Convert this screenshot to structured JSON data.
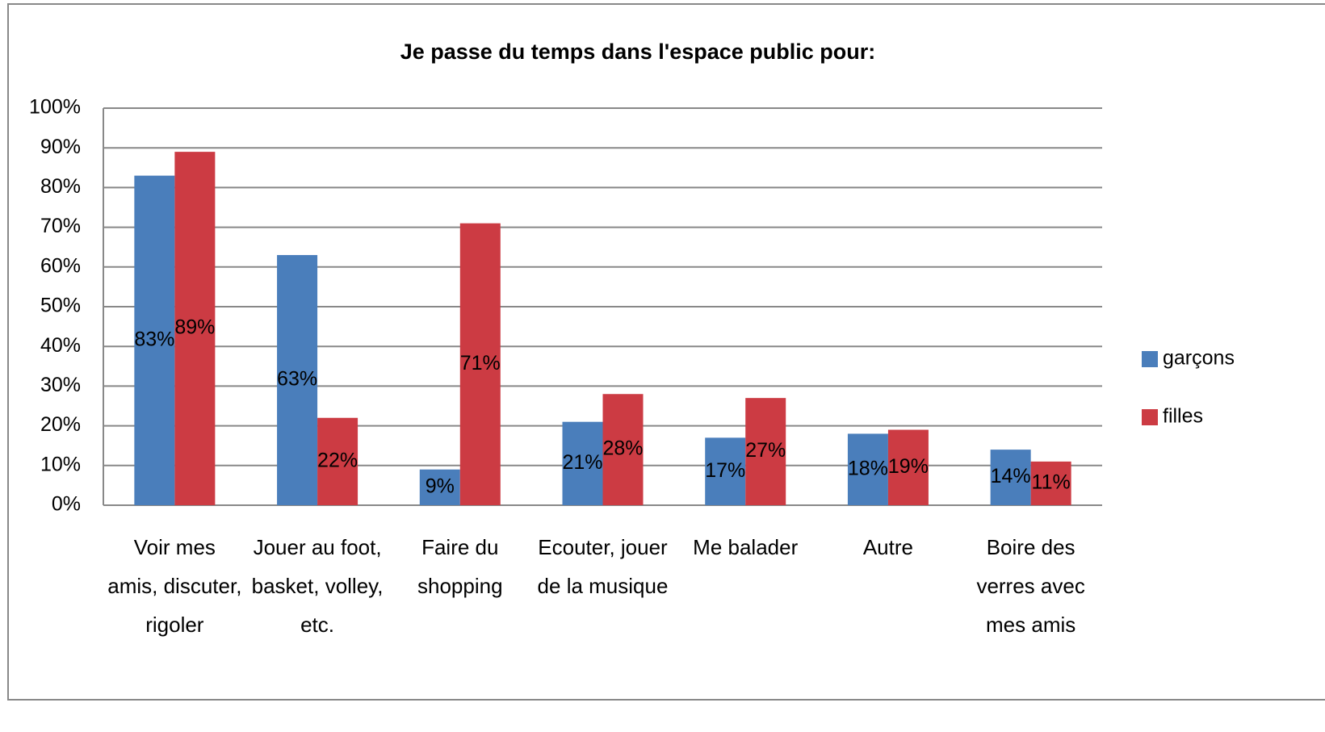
{
  "chart_data": {
    "type": "bar",
    "title": "Je passe du temps dans l'espace public pour:",
    "categories": [
      "Voir mes amis, discuter, rigoler",
      "Jouer au foot, basket, volley, etc.",
      "Faire du shopping",
      "Ecouter, jouer de la musique",
      "Me balader",
      "Autre",
      "Boire des verres avec mes amis"
    ],
    "series": [
      {
        "name": "garçons",
        "color": "#4a7ebb",
        "values": [
          83,
          63,
          9,
          21,
          17,
          18,
          14
        ],
        "value_labels": [
          "83%",
          "63%",
          "9%",
          "21%",
          "17%",
          "18%",
          "14%"
        ]
      },
      {
        "name": "filles",
        "color": "#cc3b43",
        "values": [
          89,
          22,
          71,
          28,
          27,
          19,
          11
        ],
        "value_labels": [
          "89%",
          "22%",
          "71%",
          "28%",
          "27%",
          "19%",
          "11%"
        ]
      }
    ],
    "ylim": [
      0,
      100
    ],
    "yticks": [
      {
        "value": 0,
        "label": "0%"
      },
      {
        "value": 10,
        "label": "10%"
      },
      {
        "value": 20,
        "label": "20%"
      },
      {
        "value": 30,
        "label": "30%"
      },
      {
        "value": 40,
        "label": "40%"
      },
      {
        "value": 50,
        "label": "50%"
      },
      {
        "value": 60,
        "label": "60%"
      },
      {
        "value": 70,
        "label": "70%"
      },
      {
        "value": 80,
        "label": "80%"
      },
      {
        "value": 90,
        "label": "90%"
      },
      {
        "value": 100,
        "label": "100%"
      }
    ],
    "grid": true,
    "legend": "right"
  }
}
